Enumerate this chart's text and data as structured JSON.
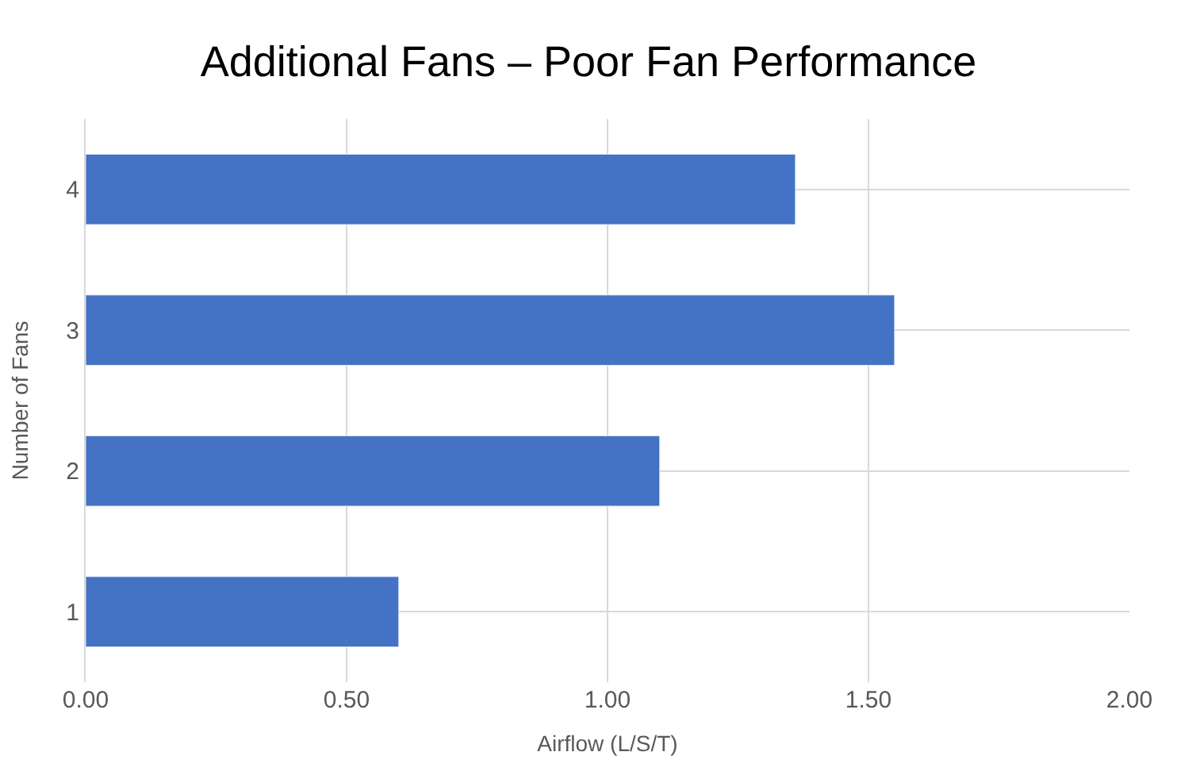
{
  "chart_data": {
    "type": "bar",
    "orientation": "horizontal",
    "title": "Additional Fans – Poor Fan Performance",
    "xlabel": "Airflow (L/S/T)",
    "ylabel": "Number of Fans",
    "categories": [
      "4",
      "3",
      "2",
      "1"
    ],
    "values": [
      1.36,
      1.55,
      1.1,
      0.6
    ],
    "color": "#4472c4",
    "xlim": [
      0,
      2
    ],
    "xticks": [
      {
        "value": 0,
        "label": "0.00"
      },
      {
        "value": 0.5,
        "label": "0.50"
      },
      {
        "value": 1,
        "label": "1.00"
      },
      {
        "value": 1.5,
        "label": "1.50"
      },
      {
        "value": 2,
        "label": "2.00"
      }
    ],
    "grid": true,
    "legend": false
  }
}
